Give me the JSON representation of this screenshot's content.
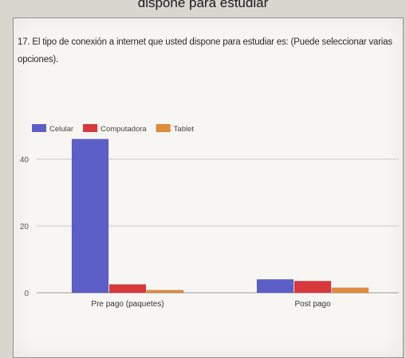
{
  "page": {
    "top_caption": "dispone para estudiar",
    "question": "17. El tipo de conexión a internet que usted dispone para estudiar es: (Puede seleccionar varias opciones)."
  },
  "chart_data": {
    "type": "bar",
    "categories": [
      "Pre pago (paquetes)",
      "Post pago"
    ],
    "series": [
      {
        "name": "Celular",
        "values": [
          46,
          4
        ],
        "color": "#5b5fc7"
      },
      {
        "name": "Computadora",
        "values": [
          2.5,
          3.5
        ],
        "color": "#d9383c"
      },
      {
        "name": "Tablet",
        "values": [
          0.8,
          1.5
        ],
        "color": "#e08a3c"
      }
    ],
    "yticks": [
      0,
      20,
      40
    ],
    "ylim": [
      0,
      50
    ],
    "legend": "top-left",
    "grid": true,
    "title": "",
    "xlabel": "",
    "ylabel": ""
  }
}
